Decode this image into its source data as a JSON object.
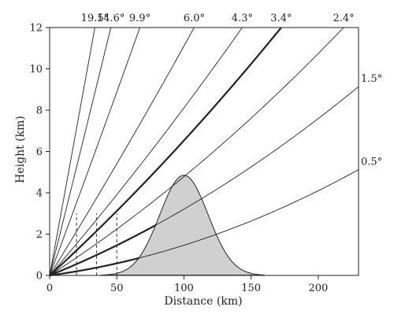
{
  "chart_data": {
    "type": "line",
    "xlabel": "Distance (km)",
    "ylabel": "Height (km)",
    "xlim": [
      0,
      230
    ],
    "ylim": [
      0,
      12
    ],
    "xticks": [
      0,
      50,
      100,
      150,
      200
    ],
    "yticks": [
      0,
      2,
      4,
      6,
      8,
      10,
      12
    ],
    "grid": false,
    "beam_elevations_deg": [
      {
        "label": "19.5°",
        "elevation": 19.5,
        "highlight": false
      },
      {
        "label": "14.6°",
        "elevation": 14.6,
        "highlight": false
      },
      {
        "label": "9.9°",
        "elevation": 9.9,
        "highlight": false
      },
      {
        "label": "6.0°",
        "elevation": 6.0,
        "highlight": false
      },
      {
        "label": "4.3°",
        "elevation": 4.3,
        "highlight": false
      },
      {
        "label": "3.4°",
        "elevation": 3.4,
        "highlight": true
      },
      {
        "label": "2.4°",
        "elevation": 2.4,
        "highlight": false
      },
      {
        "label": "1.5°",
        "elevation": 1.5,
        "highlight": false
      },
      {
        "label": "0.5°",
        "elevation": 0.5,
        "highlight": false
      }
    ],
    "terrain": {
      "peak_distance_km": 100,
      "peak_height_km": 4.85,
      "start_km": 38,
      "end_km": 160
    },
    "dashed_verticals_km": [
      {
        "x": 20,
        "height": 3.0
      },
      {
        "x": 35,
        "height": 3.0
      },
      {
        "x": 50,
        "height": 3.0
      }
    ],
    "colors": {
      "axis": "#222222",
      "beam": "#222222",
      "terrain_fill": "#d0d0d0",
      "terrain_stroke": "#222222"
    }
  }
}
